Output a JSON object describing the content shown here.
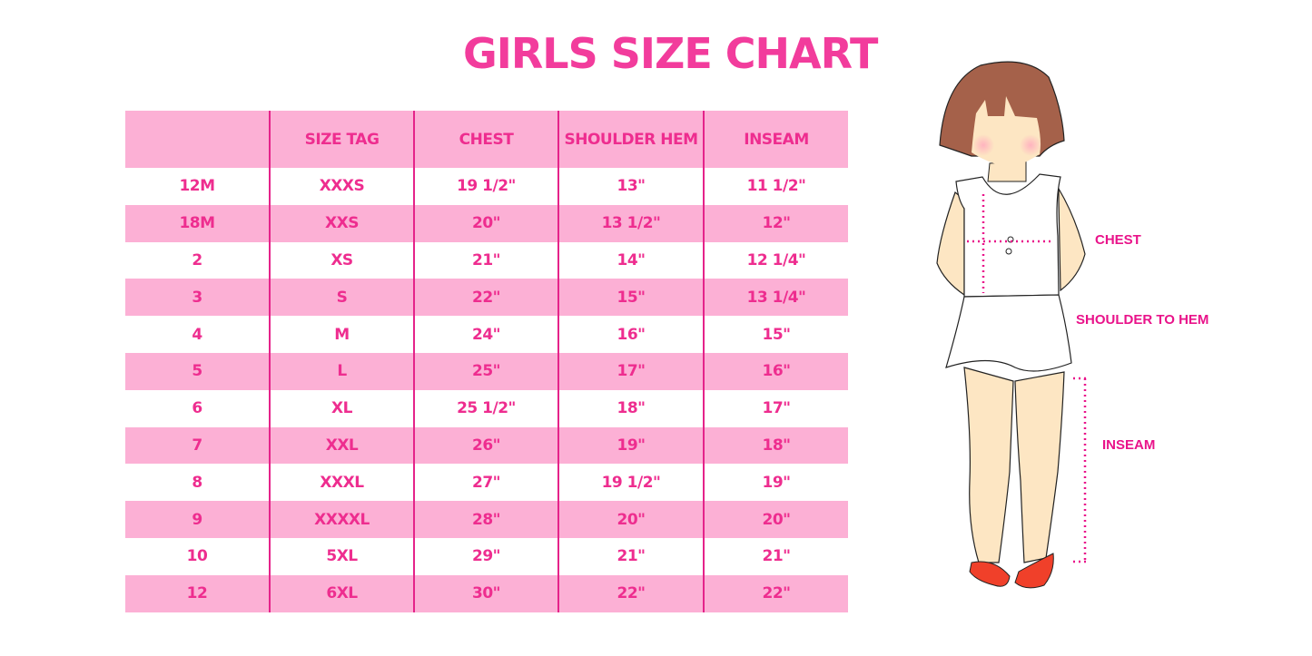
{
  "title": "GIRLS SIZE CHART",
  "table": {
    "headers": [
      "",
      "SIZE TAG",
      "CHEST",
      "SHOULDER HEM",
      "INSEAM"
    ],
    "rows": [
      [
        "12M",
        "XXXS",
        "19 1/2\"",
        "13\"",
        "11 1/2\""
      ],
      [
        "18M",
        "XXS",
        "20\"",
        "13 1/2\"",
        "12\""
      ],
      [
        "2",
        "XS",
        "21\"",
        "14\"",
        "12 1/4\""
      ],
      [
        "3",
        "S",
        "22\"",
        "15\"",
        "13 1/4\""
      ],
      [
        "4",
        "M",
        "24\"",
        "16\"",
        "15\""
      ],
      [
        "5",
        "L",
        "25\"",
        "17\"",
        "16\""
      ],
      [
        "6",
        "XL",
        "25 1/2\"",
        "18\"",
        "17\""
      ],
      [
        "7",
        "XXL",
        "26\"",
        "19\"",
        "18\""
      ],
      [
        "8",
        "XXXL",
        "27\"",
        "19 1/2\"",
        "19\""
      ],
      [
        "9",
        "XXXXL",
        "28\"",
        "20\"",
        "20\""
      ],
      [
        "10",
        "5XL",
        "29\"",
        "21\"",
        "21\""
      ],
      [
        "12",
        "6XL",
        "30\"",
        "22\"",
        "22\""
      ]
    ]
  },
  "illustration": {
    "labels": {
      "chest": "CHEST",
      "shoulder_to_hem": "SHOULDER TO HEM",
      "inseam": "INSEAM"
    }
  },
  "colors": {
    "accent": "#ee2d8f",
    "row_band": "#fcb0d5",
    "hair": "#a5614a",
    "skin": "#fde6c3",
    "shoes": "#f0402a"
  }
}
